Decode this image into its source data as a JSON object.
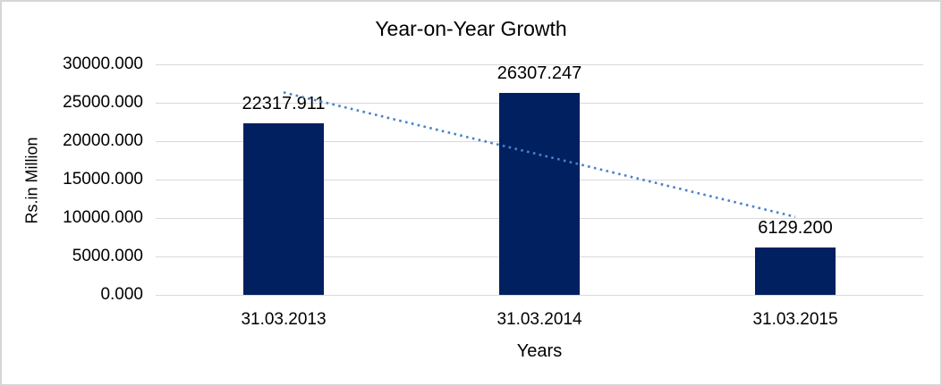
{
  "window": {
    "background": "#ffffff",
    "border_color": "#d6d6d6"
  },
  "chart_data": {
    "type": "bar",
    "title": "Year-on-Year Growth",
    "xlabel": "Years",
    "ylabel": "Rs.in Million",
    "categories": [
      "31.03.2013",
      "31.03.2014",
      "31.03.2015"
    ],
    "values": [
      22317.911,
      26307.247,
      6129.2
    ],
    "value_labels": [
      "22317.911",
      "26307.247",
      "6129.200"
    ],
    "ylim": [
      0,
      30000
    ],
    "yticks": [
      0,
      5000,
      10000,
      15000,
      20000,
      25000,
      30000
    ],
    "ytick_labels": [
      "0.000",
      "5000.000",
      "10000.000",
      "15000.000",
      "20000.000",
      "25000.000",
      "30000.000"
    ],
    "grid": true,
    "legend": "none",
    "bar_color": "#002060",
    "gridline_color": "#d9d9d9",
    "text_color": "#000000",
    "trendline": {
      "type": "linear",
      "style": "dotted",
      "color": "#4a82c8"
    }
  }
}
